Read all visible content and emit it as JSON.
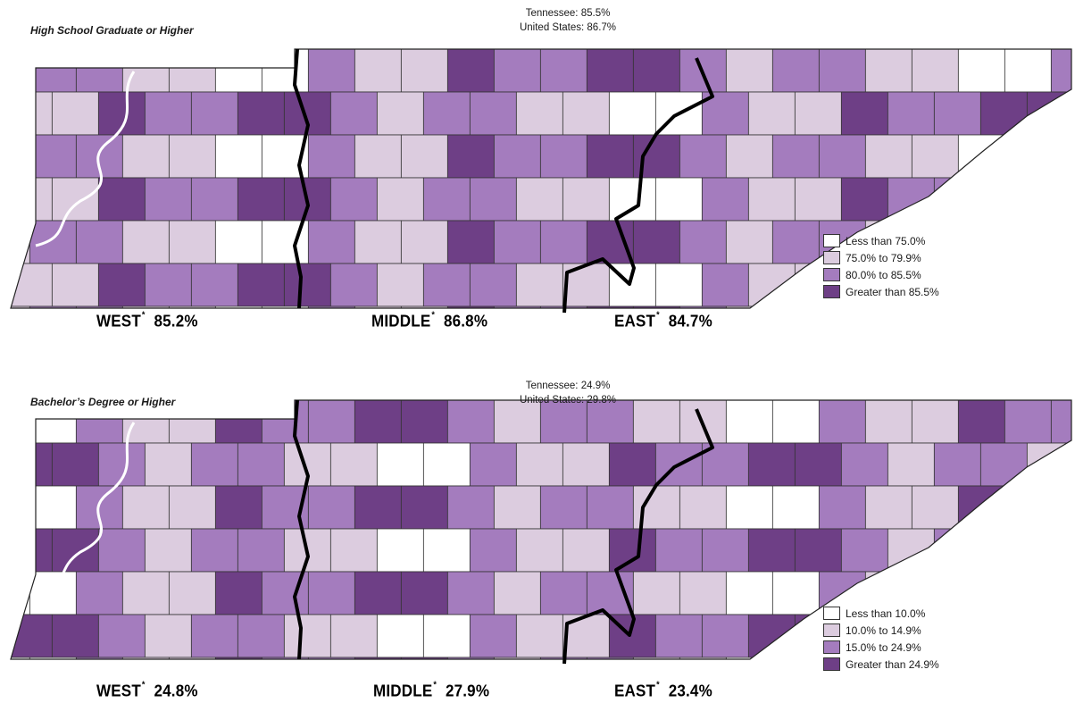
{
  "colors": {
    "lt1": "#ffffff",
    "lt2": "#dcccdf",
    "mid": "#a47cbe",
    "high": "#6e3f86"
  },
  "maps": [
    {
      "title": "High School Graduate or Higher",
      "tennessee": "Tennessee:  85.5%",
      "us": "United States:  86.7%",
      "regions": [
        {
          "name": "WEST",
          "value": "85.2%"
        },
        {
          "name": "MIDDLE",
          "value": "86.8%"
        },
        {
          "name": "EAST",
          "value": "84.7%"
        }
      ],
      "legend": [
        {
          "label": "Less than 75.0%",
          "cls": "lt1"
        },
        {
          "label": "75.0% to 79.9%",
          "cls": "lt2"
        },
        {
          "label": "80.0% to 85.5%",
          "cls": "mid"
        },
        {
          "label": "Greater than 85.5%",
          "cls": "high"
        }
      ]
    },
    {
      "title": "Bachelor’s Degree or Higher",
      "tennessee": "Tennessee:  24.9%",
      "us": "United States:  29.8%",
      "regions": [
        {
          "name": "WEST",
          "value": "24.8%"
        },
        {
          "name": "MIDDLE",
          "value": "27.9%"
        },
        {
          "name": "EAST",
          "value": "23.4%"
        }
      ],
      "legend": [
        {
          "label": "Less than 10.0%",
          "cls": "lt1"
        },
        {
          "label": "10.0% to 14.9%",
          "cls": "lt2"
        },
        {
          "label": "15.0% to 24.9%",
          "cls": "mid"
        },
        {
          "label": "Greater than 24.9%",
          "cls": "high"
        }
      ]
    }
  ]
}
